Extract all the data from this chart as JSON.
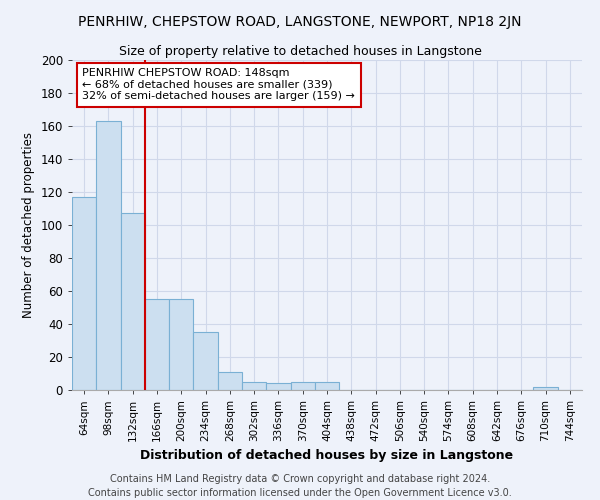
{
  "title": "PENRHIW, CHEPSTOW ROAD, LANGSTONE, NEWPORT, NP18 2JN",
  "subtitle": "Size of property relative to detached houses in Langstone",
  "xlabel": "Distribution of detached houses by size in Langstone",
  "ylabel": "Number of detached properties",
  "bar_color": "#ccdff0",
  "bar_edge_color": "#7ab0d4",
  "bin_labels": [
    "64sqm",
    "98sqm",
    "132sqm",
    "166sqm",
    "200sqm",
    "234sqm",
    "268sqm",
    "302sqm",
    "336sqm",
    "370sqm",
    "404sqm",
    "438sqm",
    "472sqm",
    "506sqm",
    "540sqm",
    "574sqm",
    "608sqm",
    "642sqm",
    "676sqm",
    "710sqm",
    "744sqm"
  ],
  "bar_heights": [
    117,
    163,
    107,
    55,
    55,
    35,
    11,
    5,
    4,
    5,
    5,
    0,
    0,
    0,
    0,
    0,
    0,
    0,
    0,
    2,
    0
  ],
  "vline_x": 3.0,
  "vline_color": "#cc0000",
  "annotation_text": "PENRHIW CHEPSTOW ROAD: 148sqm\n← 68% of detached houses are smaller (339)\n32% of semi-detached houses are larger (159) →",
  "annotation_box_color": "#ffffff",
  "annotation_box_edge": "#cc0000",
  "footer": "Contains HM Land Registry data © Crown copyright and database right 2024.\nContains public sector information licensed under the Open Government Licence v3.0.",
  "ylim": [
    0,
    200
  ],
  "yticks": [
    0,
    20,
    40,
    60,
    80,
    100,
    120,
    140,
    160,
    180,
    200
  ],
  "background_color": "#eef2fa",
  "plot_bg_color": "#eef2fa",
  "grid_color": "#d0d8ea",
  "title_fontsize": 10,
  "subtitle_fontsize": 9,
  "ylabel_fontsize": 8.5,
  "xlabel_fontsize": 9,
  "footer_fontsize": 7,
  "annot_fontsize": 8
}
